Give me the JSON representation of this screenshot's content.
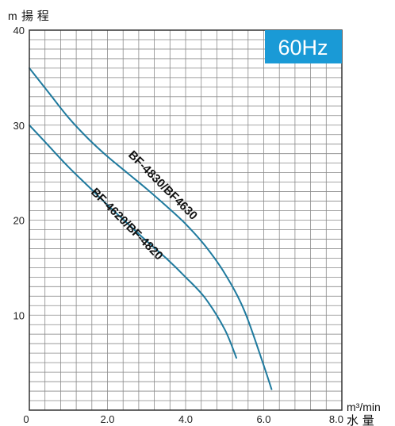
{
  "chart_data": {
    "type": "line",
    "badge": "60Hz",
    "badge_color": "#1a9ad6",
    "y_axis": {
      "unit": "m",
      "title": "揚 程",
      "ticks": [
        "40",
        "30",
        "20",
        "10"
      ],
      "range": [
        0,
        40
      ]
    },
    "x_axis": {
      "unit": "m³/min",
      "title": "水 量",
      "ticks": [
        "0",
        "2.0",
        "4.0",
        "6.0",
        "8.0"
      ],
      "range": [
        0,
        8
      ]
    },
    "grid": true,
    "series": [
      {
        "name": "BF-4830/BF4630",
        "color": "#1f7a9e",
        "x": [
          0,
          0.5,
          1.0,
          1.5,
          2.0,
          2.5,
          3.0,
          3.5,
          4.0,
          4.5,
          5.0,
          5.5,
          6.0,
          6.2
        ],
        "y": [
          36.0,
          33.4,
          30.8,
          28.6,
          26.7,
          25.0,
          23.3,
          21.5,
          19.6,
          17.3,
          14.4,
          10.5,
          4.7,
          2.2
        ]
      },
      {
        "name": "BF-4620/BF-4820",
        "color": "#1f7a9e",
        "x": [
          0,
          0.5,
          1.0,
          1.5,
          2.0,
          2.5,
          3.0,
          3.5,
          4.0,
          4.5,
          5.0,
          5.3
        ],
        "y": [
          30.0,
          27.8,
          25.6,
          23.6,
          21.6,
          19.7,
          17.8,
          16.0,
          14.0,
          11.8,
          8.5,
          5.5
        ]
      }
    ]
  }
}
